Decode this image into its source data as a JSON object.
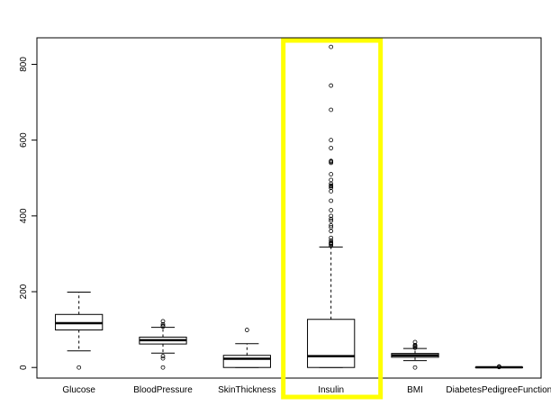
{
  "chart_data": {
    "type": "boxplot",
    "categories": [
      "Glucose",
      "BloodPressure",
      "SkinThickness",
      "Insulin",
      "BMI",
      "DiabetesPedigreeFunction"
    ],
    "y_ticks": [
      0,
      200,
      400,
      600,
      800
    ],
    "ylim": [
      -28,
      870
    ],
    "boxes": [
      {
        "name": "Glucose",
        "whisker_low": 44,
        "q1": 99,
        "median": 117,
        "q3": 140,
        "whisker_high": 199,
        "outliers": [
          0
        ]
      },
      {
        "name": "BloodPressure",
        "whisker_low": 38,
        "q1": 62,
        "median": 72,
        "q3": 80,
        "whisker_high": 106,
        "outliers": [
          0,
          24,
          30,
          108,
          110,
          114,
          122
        ]
      },
      {
        "name": "SkinThickness",
        "whisker_low": 0,
        "q1": 0,
        "median": 23,
        "q3": 32,
        "whisker_high": 63,
        "outliers": [
          99
        ]
      },
      {
        "name": "Insulin",
        "whisker_low": 0,
        "q1": 0,
        "median": 30,
        "q3": 127,
        "whisker_high": 318,
        "outliers": [
          321,
          325,
          326,
          328,
          330,
          335,
          342,
          360,
          370,
          375,
          387,
          392,
          400,
          415,
          440,
          465,
          474,
          478,
          480,
          485,
          495,
          510,
          540,
          543,
          545,
          579,
          600,
          680,
          744,
          846
        ]
      },
      {
        "name": "BMI",
        "whisker_low": 18,
        "q1": 27,
        "median": 32,
        "q3": 37,
        "whisker_high": 50,
        "outliers": [
          0,
          52,
          55,
          57,
          59,
          67
        ]
      },
      {
        "name": "DiabetesPedigreeFunction",
        "whisker_low": 0.08,
        "q1": 0.24,
        "median": 0.37,
        "q3": 0.63,
        "whisker_high": 1.2,
        "outliers": [
          1.3,
          1.6,
          1.9,
          2.1,
          2.4
        ]
      }
    ],
    "highlight": {
      "category": "Insulin",
      "color": "#ffff00"
    },
    "grid": false
  }
}
